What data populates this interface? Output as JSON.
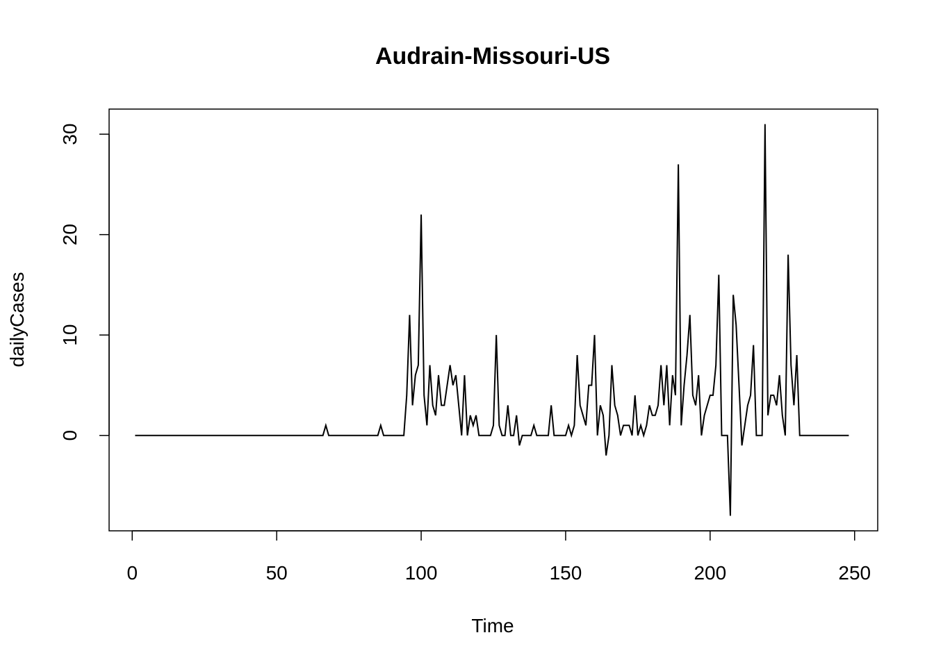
{
  "chart_data": {
    "type": "line",
    "title": "Audrain-Missouri-US",
    "xlabel": "Time",
    "ylabel": "dailyCases",
    "xlim": [
      -8,
      258
    ],
    "ylim": [
      -9.5,
      32.5
    ],
    "x_ticks": [
      0,
      50,
      100,
      150,
      200,
      250
    ],
    "y_ticks": [
      0,
      10,
      20,
      30
    ],
    "grid": false,
    "legend": "none",
    "line_color": "#000000",
    "x_start": 1,
    "series": [
      {
        "values": [
          0,
          0,
          0,
          0,
          0,
          0,
          0,
          0,
          0,
          0,
          0,
          0,
          0,
          0,
          0,
          0,
          0,
          0,
          0,
          0,
          0,
          0,
          0,
          0,
          0,
          0,
          0,
          0,
          0,
          0,
          0,
          0,
          0,
          0,
          0,
          0,
          0,
          0,
          0,
          0,
          0,
          0,
          0,
          0,
          0,
          0,
          0,
          0,
          0,
          0,
          0,
          0,
          0,
          0,
          0,
          0,
          0,
          0,
          0,
          0,
          0,
          0,
          0,
          0,
          0,
          0,
          1,
          0,
          0,
          0,
          0,
          0,
          0,
          0,
          0,
          0,
          0,
          0,
          0,
          0,
          0,
          0,
          0,
          0,
          0,
          1,
          0,
          0,
          0,
          0,
          0,
          0,
          0,
          0,
          4,
          12,
          3,
          6,
          7,
          22,
          4,
          1,
          7,
          3,
          2,
          6,
          3,
          3,
          5,
          7,
          5,
          6,
          3,
          0,
          6,
          0,
          2,
          1,
          2,
          0,
          0,
          0,
          0,
          0,
          1,
          10,
          1,
          0,
          0,
          3,
          0,
          0,
          2,
          -1,
          0,
          0,
          0,
          0,
          1,
          0,
          0,
          0,
          0,
          0,
          3,
          0,
          0,
          0,
          0,
          0,
          1,
          0,
          1,
          8,
          3,
          2,
          1,
          5,
          5,
          10,
          0,
          3,
          2,
          -2,
          0,
          7,
          3,
          2,
          0,
          1,
          1,
          1,
          0,
          4,
          0,
          1,
          0,
          1,
          3,
          2,
          2,
          3,
          7,
          3,
          7,
          1,
          6,
          4,
          27,
          1,
          5,
          8,
          12,
          4,
          3,
          6,
          0,
          2,
          3,
          4,
          4,
          7,
          16,
          0,
          0,
          0,
          -8,
          14,
          11,
          5,
          -1,
          1,
          3,
          4,
          9,
          0,
          0,
          0,
          31,
          2,
          4,
          4,
          3,
          6,
          2,
          0,
          18,
          7,
          3,
          8,
          0,
          0,
          0,
          0,
          0,
          0,
          0,
          0,
          0,
          0,
          0,
          0,
          0,
          0,
          0,
          0,
          0,
          0
        ]
      }
    ]
  }
}
